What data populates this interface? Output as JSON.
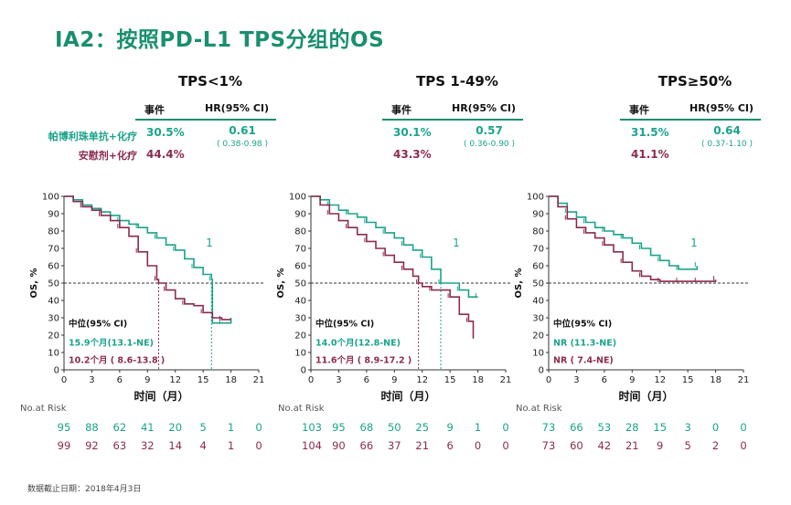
{
  "page_title": "IA2：按照PD-L1 TPS分组的OS",
  "footer": "数据截止日期：2018年4月3日",
  "arm_labels": {
    "pembro": "帕博利珠单抗+化疗",
    "placebo": "安慰剂+化疗"
  },
  "table_headers": {
    "events": "事件",
    "hr": "HR(95% CI)"
  },
  "risk_label": "No.at Risk",
  "colors": {
    "pembro": "#1aa38a",
    "placebo": "#8b2b4f",
    "title": "#1a8f6f"
  },
  "chart_data": [
    {
      "type": "line",
      "title": "TPS<1%",
      "xlabel": "时间（月）",
      "ylabel": "OS, %",
      "xlim": [
        0,
        21
      ],
      "ylim": [
        0,
        100
      ],
      "xticks": [
        0,
        3,
        6,
        9,
        12,
        15,
        18,
        21
      ],
      "yticks": [
        0,
        10,
        20,
        30,
        40,
        50,
        60,
        70,
        80,
        90,
        100
      ],
      "events": {
        "pembro": "30.5%",
        "placebo": "44.4%"
      },
      "hr": "0.61",
      "hr_ci": "( 0.38-0.98 )",
      "median_label": "中位(95% CI)",
      "median_pembro": "15.9个月(13.1-NE)",
      "median_placebo": "10.2个月 ( 8.6-13.8 )",
      "curve_label": "1",
      "median_lines": [
        10.2,
        15.9
      ],
      "series": [
        {
          "name": "帕博利珠单抗+化疗",
          "x": [
            0,
            1,
            2,
            3,
            4,
            5,
            6,
            7,
            8,
            9,
            10,
            11,
            12,
            13,
            14,
            15,
            15.9,
            16,
            17,
            18
          ],
          "y": [
            100,
            98,
            95,
            93,
            91,
            89,
            86,
            84,
            82,
            79,
            76,
            72,
            69,
            64,
            59,
            55,
            52,
            27,
            27,
            30
          ]
        },
        {
          "name": "安慰剂+化疗",
          "x": [
            0,
            1,
            2,
            3,
            4,
            5,
            6,
            7,
            8,
            9,
            10,
            10.2,
            11,
            12,
            13,
            14,
            15,
            16,
            17,
            18
          ],
          "y": [
            100,
            97,
            94,
            92,
            89,
            86,
            82,
            77,
            68,
            60,
            52,
            50,
            46,
            41,
            38,
            37,
            33,
            30,
            29,
            29
          ]
        }
      ],
      "risk_x": [
        0,
        3,
        6,
        9,
        12,
        15,
        18,
        21
      ],
      "risk_pembro": [
        95,
        88,
        62,
        41,
        20,
        5,
        1,
        0
      ],
      "risk_placebo": [
        99,
        92,
        63,
        32,
        14,
        4,
        1,
        0
      ]
    },
    {
      "type": "line",
      "title": "TPS 1-49%",
      "xlabel": "时间（月）",
      "ylabel": "OS, %",
      "xlim": [
        0,
        21
      ],
      "ylim": [
        0,
        100
      ],
      "xticks": [
        0,
        3,
        6,
        9,
        12,
        15,
        18,
        21
      ],
      "yticks": [
        0,
        10,
        20,
        30,
        40,
        50,
        60,
        70,
        80,
        90,
        100
      ],
      "events": {
        "pembro": "30.1%",
        "placebo": "43.3%"
      },
      "hr": "0.57",
      "hr_ci": "( 0.36-0.90 )",
      "median_label": "中位(95% CI)",
      "median_pembro": "14.0个月(12.8-NE)",
      "median_placebo": "11.6个月 ( 8.9-17.2 )",
      "curve_label": "1",
      "median_lines": [
        11.6,
        14.0
      ],
      "series": [
        {
          "name": "帕博利珠单抗+化疗",
          "x": [
            0,
            1,
            2,
            3,
            4,
            5,
            6,
            7,
            8,
            9,
            10,
            11,
            12,
            13,
            14,
            15,
            16,
            17,
            18
          ],
          "y": [
            100,
            98,
            95,
            92,
            90,
            88,
            85,
            82,
            79,
            76,
            72,
            69,
            65,
            58,
            50,
            50,
            46,
            42,
            42
          ]
        },
        {
          "name": "安慰剂+化疗",
          "x": [
            0,
            1,
            2,
            3,
            4,
            5,
            6,
            7,
            8,
            9,
            10,
            11,
            11.6,
            12,
            13,
            14,
            15,
            16,
            17,
            17.5
          ],
          "y": [
            100,
            95,
            90,
            86,
            82,
            78,
            74,
            70,
            66,
            62,
            58,
            54,
            50,
            48,
            46,
            46,
            42,
            32,
            28,
            18
          ]
        }
      ],
      "risk_x": [
        0,
        3,
        6,
        9,
        12,
        15,
        18,
        21
      ],
      "risk_pembro": [
        103,
        95,
        68,
        50,
        25,
        9,
        1,
        0
      ],
      "risk_placebo": [
        104,
        90,
        66,
        37,
        21,
        6,
        0,
        0
      ]
    },
    {
      "type": "line",
      "title": "TPS≥50%",
      "xlabel": "时间（月）",
      "ylabel": "OS, %",
      "xlim": [
        0,
        21
      ],
      "ylim": [
        0,
        100
      ],
      "xticks": [
        0,
        3,
        6,
        9,
        12,
        15,
        18,
        21
      ],
      "yticks": [
        0,
        10,
        20,
        30,
        40,
        50,
        60,
        70,
        80,
        90,
        100
      ],
      "events": {
        "pembro": "31.5%",
        "placebo": "41.1%"
      },
      "hr": "0.64",
      "hr_ci": "( 0.37-1.10 )",
      "median_label": "中位(95% CI)",
      "median_pembro": "NR (11.3-NE)",
      "median_placebo": "NR ( 7.4-NE)",
      "curve_label": "1",
      "median_lines": [],
      "series": [
        {
          "name": "帕博利珠单抗+化疗",
          "x": [
            0,
            1,
            2,
            3,
            4,
            5,
            6,
            7,
            8,
            9,
            10,
            11,
            12,
            13,
            14,
            15,
            16
          ],
          "y": [
            100,
            96,
            91,
            88,
            85,
            82,
            80,
            78,
            76,
            73,
            70,
            66,
            63,
            60,
            58,
            58,
            60
          ]
        },
        {
          "name": "安慰剂+化疗",
          "x": [
            0,
            1,
            2,
            3,
            4,
            5,
            6,
            7,
            8,
            9,
            10,
            11,
            12,
            13,
            14,
            15,
            16,
            17,
            18
          ],
          "y": [
            100,
            94,
            87,
            82,
            79,
            76,
            72,
            68,
            62,
            57,
            54,
            52,
            51,
            51,
            51,
            51,
            51,
            51,
            52
          ]
        }
      ],
      "risk_x": [
        0,
        3,
        6,
        9,
        12,
        15,
        18,
        21
      ],
      "risk_pembro": [
        73,
        66,
        53,
        28,
        15,
        3,
        0,
        0
      ],
      "risk_placebo": [
        73,
        60,
        42,
        21,
        9,
        5,
        2,
        0
      ]
    }
  ]
}
